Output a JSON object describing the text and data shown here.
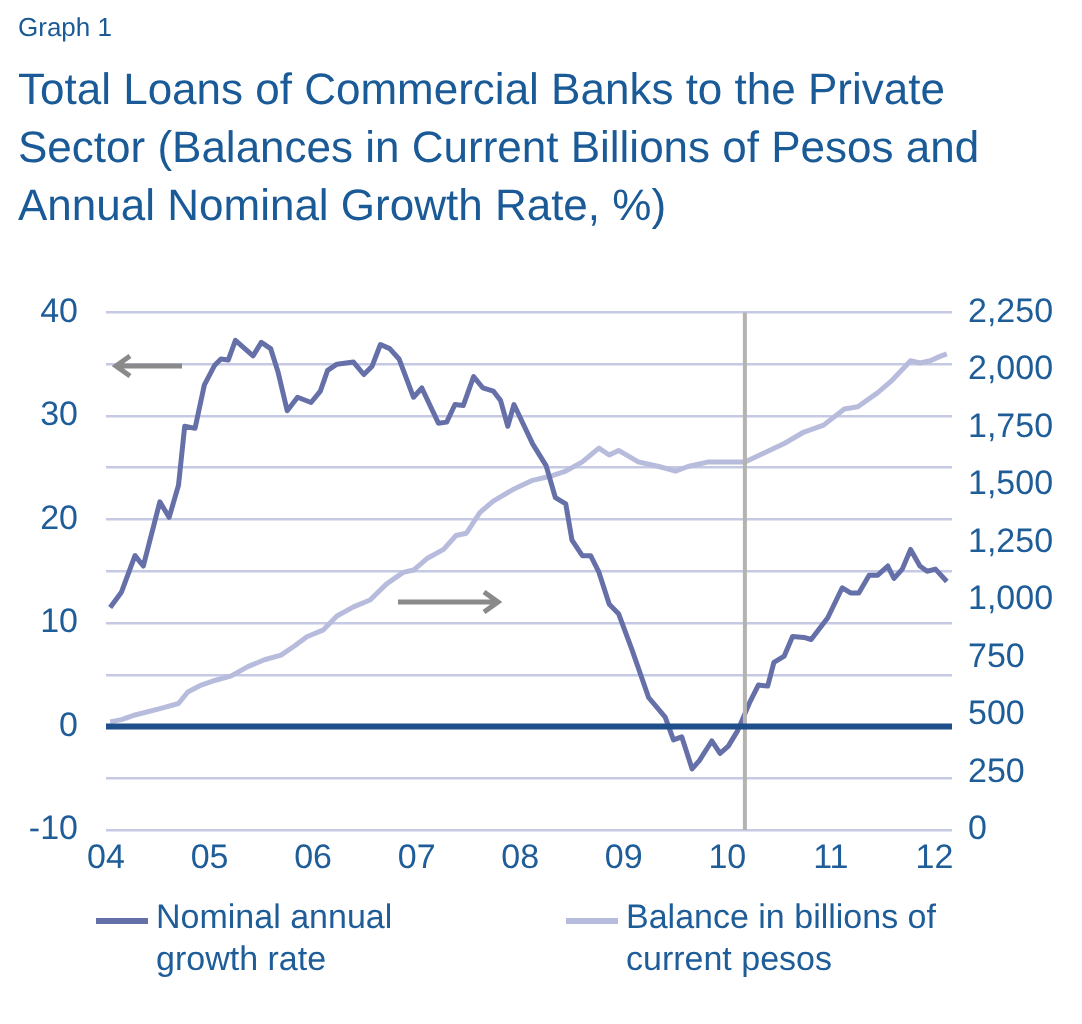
{
  "chart_data": {
    "type": "line",
    "title": "Total Loans of Commercial Banks to the Private Sector (Balances in Current Billions of Pesos and Annual Nominal Growth Rate, %)",
    "annotations": [
      "Graph 1"
    ],
    "xlim": [
      2004,
      2012.17
    ],
    "xticks": [
      {
        "value": 2004,
        "label": "04"
      },
      {
        "value": 2005,
        "label": "05"
      },
      {
        "value": 2006,
        "label": "06"
      },
      {
        "value": 2007,
        "label": "07"
      },
      {
        "value": 2008,
        "label": "08"
      },
      {
        "value": 2009,
        "label": "09"
      },
      {
        "value": 2010,
        "label": "10"
      },
      {
        "value": 2011,
        "label": "11"
      },
      {
        "value": 2012,
        "label": "12"
      }
    ],
    "ylim": [
      -10,
      40
    ],
    "yticks": [
      -10,
      {
        "value": -5,
        "label": null
      },
      0,
      {
        "value": 5,
        "label": null
      },
      10,
      {
        "value": 15,
        "label": null
      },
      20,
      {
        "value": 25,
        "label": null
      },
      30,
      {
        "value": 35,
        "label": null
      },
      40
    ],
    "y2lim": [
      0,
      2250
    ],
    "y2ticks": [
      {
        "value": 0,
        "label": "0"
      },
      {
        "value": 250,
        "label": "250"
      },
      {
        "value": 500,
        "label": "500"
      },
      {
        "value": 750,
        "label": "750"
      },
      {
        "value": 1000,
        "label": "1,000"
      },
      {
        "value": 1250,
        "label": "1,250"
      },
      {
        "value": 1500,
        "label": "1,500"
      },
      {
        "value": 1750,
        "label": "1,750"
      },
      {
        "value": 2000,
        "label": "2,000"
      },
      {
        "value": 2250,
        "label": "2,250"
      }
    ],
    "grid": "y",
    "legend": "bottom",
    "marker": "none",
    "ref_lines": [
      {
        "axis": "x",
        "value": 2010.17,
        "color": "#b5b3b0"
      },
      {
        "axis": "y",
        "value": 0,
        "color": "#1f4f8a"
      }
    ],
    "series": [
      {
        "name": "Nominal annual growth rate",
        "color": "#6670a8",
        "x": [
          2004.04,
          2004.15,
          2004.28,
          2004.36,
          2004.52,
          2004.61,
          2004.7,
          2004.76,
          2004.86,
          2004.95,
          2005.05,
          2005.11,
          2005.18,
          2005.25,
          2005.42,
          2005.5,
          2005.59,
          2005.66,
          2005.75,
          2005.85,
          2005.98,
          2006.07,
          2006.14,
          2006.23,
          2006.39,
          2006.49,
          2006.57,
          2006.65,
          2006.74,
          2006.83,
          2006.97,
          2007.05,
          2007.21,
          2007.29,
          2007.37,
          2007.45,
          2007.55,
          2007.64,
          2007.74,
          2007.81,
          2007.88,
          2007.94,
          2008.12,
          2008.25,
          2008.34,
          2008.44,
          2008.5,
          2008.6,
          2008.68,
          2008.76,
          2008.86,
          2008.95,
          2009.08,
          2009.24,
          2009.4,
          2009.48,
          2009.56,
          2009.66,
          2009.73,
          2009.85,
          2009.93,
          2010.01,
          2010.1,
          2010.22,
          2010.3,
          2010.39,
          2010.45,
          2010.55,
          2010.63,
          2010.74,
          2010.81,
          2010.97,
          2011.11,
          2011.19,
          2011.27,
          2011.37,
          2011.45,
          2011.55,
          2011.61,
          2011.69,
          2011.77,
          2011.86,
          2011.93,
          2012.01,
          2012.12
        ],
        "values": [
          11.5,
          13.0,
          16.5,
          15.5,
          21.7,
          20.2,
          23.3,
          29.0,
          28.8,
          33.0,
          34.9,
          35.5,
          35.4,
          37.3,
          35.8,
          37.1,
          36.5,
          34.3,
          30.5,
          31.8,
          31.3,
          32.4,
          34.4,
          35.0,
          35.2,
          34.0,
          34.8,
          36.9,
          36.5,
          35.5,
          31.8,
          32.7,
          29.3,
          29.4,
          31.1,
          31.0,
          33.8,
          32.7,
          32.4,
          31.5,
          29.0,
          31.1,
          27.3,
          25.2,
          22.1,
          21.5,
          18.0,
          16.5,
          16.5,
          14.9,
          11.8,
          10.9,
          7.4,
          2.8,
          0.9,
          -1.3,
          -1.0,
          -4.1,
          -3.3,
          -1.4,
          -2.6,
          -1.9,
          -0.4,
          2.4,
          4.0,
          3.9,
          6.2,
          6.8,
          8.7,
          8.6,
          8.4,
          10.5,
          13.4,
          12.9,
          12.9,
          14.6,
          14.6,
          15.5,
          14.3,
          15.2,
          17.1,
          15.5,
          15.0,
          15.2,
          14.0
        ]
      },
      {
        "name": "Balance in billions of current pesos",
        "color": "#b8bcdc",
        "axis": "y2",
        "x": [
          2004.04,
          2004.15,
          2004.28,
          2004.54,
          2004.7,
          2004.79,
          2004.92,
          2005.05,
          2005.21,
          2005.37,
          2005.53,
          2005.69,
          2005.82,
          2005.94,
          2006.1,
          2006.23,
          2006.39,
          2006.55,
          2006.71,
          2006.87,
          2006.97,
          2007.1,
          2007.26,
          2007.38,
          2007.48,
          2007.61,
          2007.74,
          2007.93,
          2008.12,
          2008.31,
          2008.44,
          2008.6,
          2008.76,
          2008.86,
          2008.95,
          2009.14,
          2009.34,
          2009.5,
          2009.62,
          2009.82,
          2010.17,
          2010.36,
          2010.55,
          2010.74,
          2010.93,
          2011.13,
          2011.26,
          2011.45,
          2011.58,
          2011.77,
          2011.86,
          2011.96,
          2012.06,
          2012.12
        ],
        "values": [
          470,
          480,
          500,
          530,
          550,
          600,
          630,
          650,
          670,
          710,
          740,
          760,
          800,
          840,
          870,
          930,
          970,
          1000,
          1070,
          1120,
          1130,
          1180,
          1220,
          1280,
          1290,
          1380,
          1430,
          1480,
          1520,
          1540,
          1560,
          1600,
          1660,
          1630,
          1650,
          1600,
          1580,
          1560,
          1580,
          1600,
          1600,
          1640,
          1680,
          1730,
          1760,
          1830,
          1840,
          1900,
          1950,
          2040,
          2030,
          2040,
          2060,
          2070
        ]
      }
    ]
  }
}
